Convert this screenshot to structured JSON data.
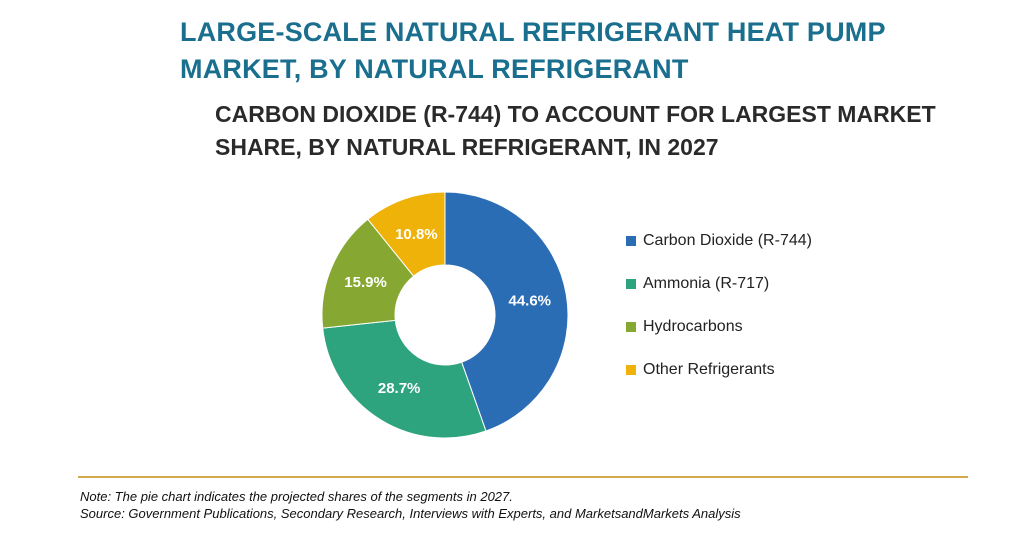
{
  "chart_data": {
    "type": "pie",
    "title": "LARGE-SCALE NATURAL REFRIGERANT HEAT PUMP MARKET, BY NATURAL REFRIGERANT",
    "subtitle": "CARBON DIOXIDE (R-744) TO ACCOUNT FOR LARGEST MARKET SHARE, BY NATURAL REFRIGERANT, IN 2027",
    "slices": [
      {
        "label": "Carbon Dioxide (R-744)",
        "value": 44.6,
        "display": "44.6%",
        "color": "#2a6db5"
      },
      {
        "label": "Ammonia (R-717)",
        "value": 28.7,
        "display": "28.7%",
        "color": "#2ea47e"
      },
      {
        "label": "Hydrocarbons",
        "value": 15.9,
        "display": "15.9%",
        "color": "#86a832"
      },
      {
        "label": "Other Refrigerants",
        "value": 10.8,
        "display": "10.8%",
        "color": "#efb208"
      }
    ],
    "legend_position": "right"
  },
  "notes": {
    "note": "Note: The pie chart indicates the projected shares of the segments in 2027.",
    "source": "Source: Government Publications, Secondary Research, Interviews with Experts, and MarketsandMarkets Analysis"
  }
}
